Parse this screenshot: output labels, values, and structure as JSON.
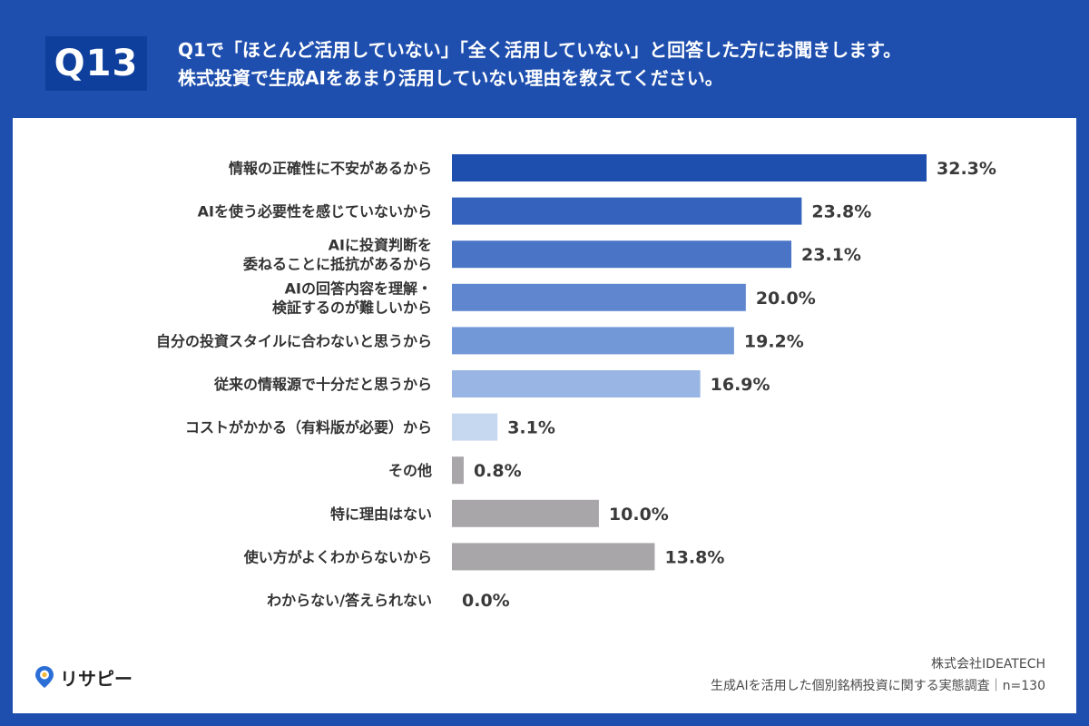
{
  "header": {
    "badge": "Q13",
    "question_line1": "Q1で「ほとんど活用していない」「全く活用していない」と回答した方にお聞きします。",
    "question_line2": "株式投資で生成AIをあまり活用していない理由を教えてください。"
  },
  "brand": {
    "logo_text": "リサピー",
    "logo_icon": "location-pin-icon"
  },
  "footer": {
    "company": "株式会社IDEATECH",
    "survey": "生成AIを活用した個別銘柄投資に関する実態調査｜n=130"
  },
  "colors": {
    "background": "#1f4fae",
    "badge": "#0e3f9c",
    "gray_bar": "#a8a6a8"
  },
  "chart_data": {
    "type": "bar",
    "orientation": "horizontal",
    "unit": "%",
    "categories": [
      [
        "情報の正確性に不安があるから"
      ],
      [
        "AIを使う必要性を感じていないから"
      ],
      [
        "AIに投資判断を",
        "委ねることに抵抗があるから"
      ],
      [
        "AIの回答内容を理解・",
        "検証するのが難しいから"
      ],
      [
        "自分の投資スタイルに合わないと思うから"
      ],
      [
        "従来の情報源で十分だと思うから"
      ],
      [
        "コストがかかる（有料版が必要）から"
      ],
      [
        "その他"
      ],
      [
        "特に理由はない"
      ],
      [
        "使い方がよくわからないから"
      ],
      [
        "わからない/答えられない"
      ]
    ],
    "values": [
      32.3,
      23.8,
      23.1,
      20.0,
      19.2,
      16.9,
      3.1,
      0.8,
      10.0,
      13.8,
      0.0
    ],
    "value_labels": [
      "32.3%",
      "23.8%",
      "23.1%",
      "20.0%",
      "19.2%",
      "16.9%",
      "3.1%",
      "0.8%",
      "10.0%",
      "13.8%",
      "0.0%"
    ],
    "bar_colors": [
      "#1f4fae",
      "#3462bd",
      "#4a74c6",
      "#5f86cf",
      "#7298d8",
      "#98b5e4",
      "#c6d7f0",
      "#a8a6a8",
      "#a8a6a8",
      "#a8a6a8",
      "#a8a6a8"
    ],
    "xlim": [
      0,
      32.3
    ],
    "grid": false,
    "legend": "none"
  }
}
